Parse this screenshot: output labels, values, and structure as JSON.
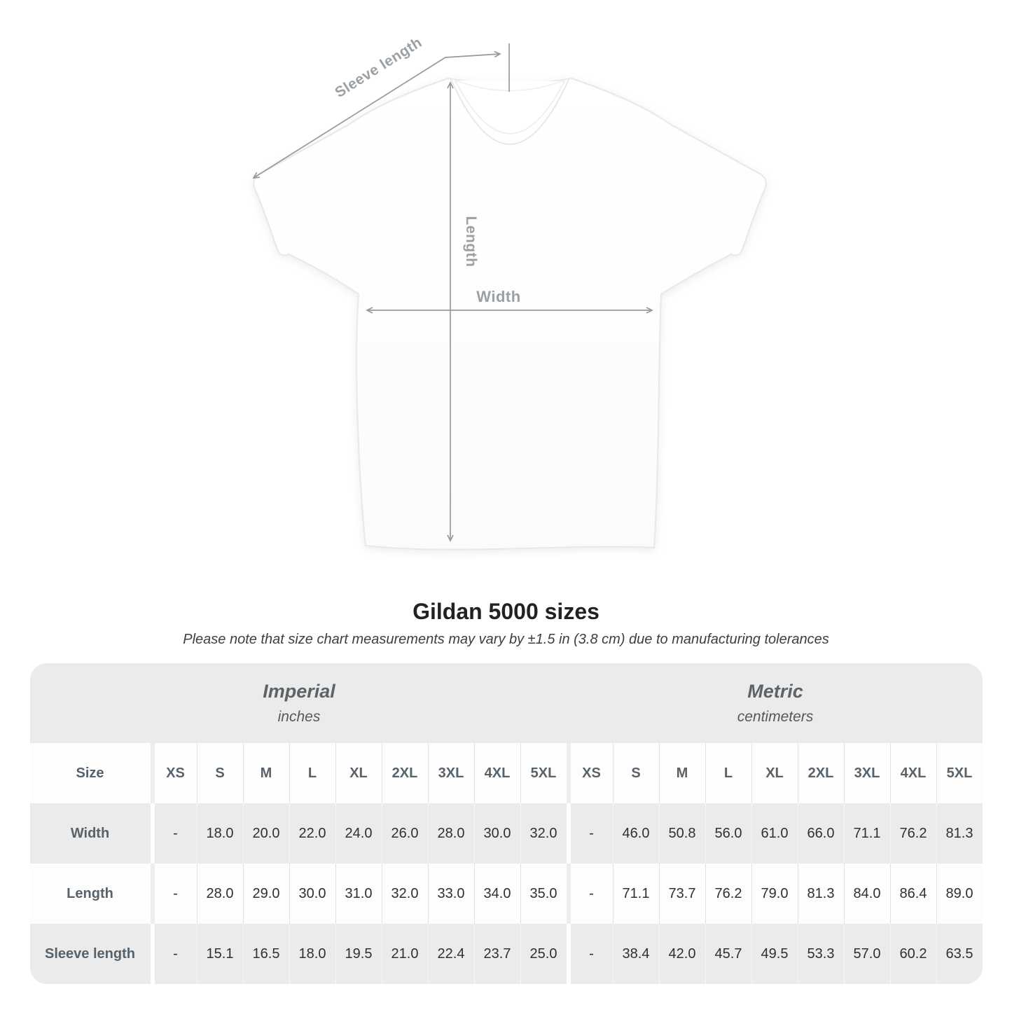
{
  "illustration": {
    "sleeve_label": "Sleeve length",
    "length_label": "Length",
    "width_label": "Width"
  },
  "header": {
    "title": "Gildan 5000 sizes",
    "note": "Please note that size chart measurements may vary by ±1.5 in (3.8 cm) due to manufacturing tolerances"
  },
  "table": {
    "size_column_header": "Size",
    "imperial": {
      "label": "Imperial",
      "unit": "inches"
    },
    "metric": {
      "label": "Metric",
      "unit": "centimeters"
    }
  },
  "chart_data": {
    "type": "table",
    "title": "Gildan 5000 sizes",
    "sections": [
      "Imperial (inches)",
      "Metric (centimeters)"
    ],
    "sizes": [
      "XS",
      "S",
      "M",
      "L",
      "XL",
      "2XL",
      "3XL",
      "4XL",
      "5XL"
    ],
    "rows": [
      {
        "label": "Width",
        "imperial": [
          "-",
          "18.0",
          "20.0",
          "22.0",
          "24.0",
          "26.0",
          "28.0",
          "30.0",
          "32.0"
        ],
        "metric": [
          "-",
          "46.0",
          "50.8",
          "56.0",
          "61.0",
          "66.0",
          "71.1",
          "76.2",
          "81.3"
        ]
      },
      {
        "label": "Length",
        "imperial": [
          "-",
          "28.0",
          "29.0",
          "30.0",
          "31.0",
          "32.0",
          "33.0",
          "34.0",
          "35.0"
        ],
        "metric": [
          "-",
          "71.1",
          "73.7",
          "76.2",
          "79.0",
          "81.3",
          "84.0",
          "86.4",
          "89.0"
        ]
      },
      {
        "label": "Sleeve length",
        "imperial": [
          "-",
          "15.1",
          "16.5",
          "18.0",
          "19.5",
          "21.0",
          "22.4",
          "23.7",
          "25.0"
        ],
        "metric": [
          "-",
          "38.4",
          "42.0",
          "45.7",
          "49.5",
          "53.3",
          "57.0",
          "60.2",
          "63.5"
        ]
      }
    ]
  },
  "colors": {
    "table_band_gray": "#ebebeb",
    "row_white": "#fdfdfe",
    "header_text": "#58626a",
    "value_text": "#303030",
    "annotation_gray": "#9ba0a4",
    "annotation_line": "#97999b",
    "title_text": "#222222"
  }
}
